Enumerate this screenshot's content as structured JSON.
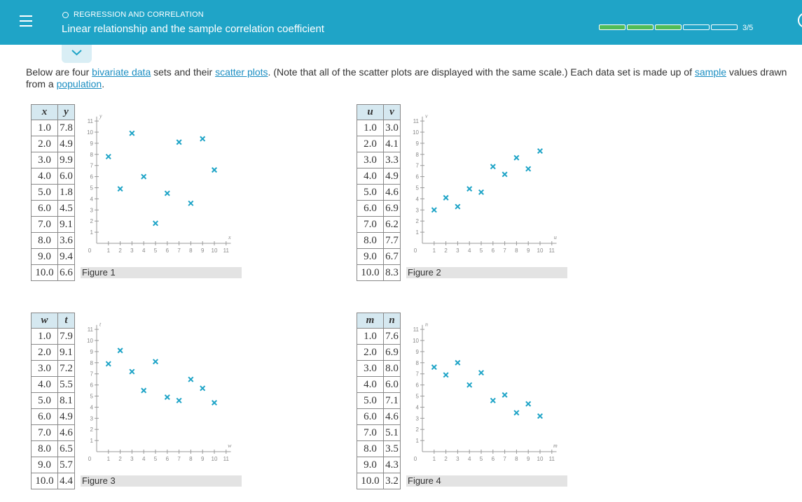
{
  "header": {
    "section": "REGRESSION AND CORRELATION",
    "title": "Linear relationship and the sample correlation coefficient",
    "progress_text": "3/5",
    "progress_completed": 3,
    "progress_total": 5,
    "accent": "#1fa4c7",
    "progress_color": "#4fbc59"
  },
  "intro": {
    "t1": "Below are four ",
    "link1": "bivariate data",
    "t2": " sets and their ",
    "link2": "scatter plots",
    "t3": ". (Note that all of the scatter plots are displayed with the same scale.) Each data set is made up of ",
    "link3": "sample",
    "t4": " values drawn from a ",
    "link4": "population",
    "t5": "."
  },
  "axis": {
    "yticks": [
      "1",
      "2",
      "3",
      "4",
      "5",
      "6",
      "7",
      "8",
      "9",
      "10",
      "11"
    ],
    "xticks": [
      "1",
      "2",
      "3",
      "4",
      "5",
      "6",
      "7",
      "8",
      "9",
      "10",
      "11"
    ],
    "zero": "0"
  },
  "figures": [
    {
      "caption": "Figure 1",
      "xname": "x",
      "yname": "y",
      "rows": [
        [
          "1.0",
          "7.8"
        ],
        [
          "2.0",
          "4.9"
        ],
        [
          "3.0",
          "9.9"
        ],
        [
          "4.0",
          "6.0"
        ],
        [
          "5.0",
          "1.8"
        ],
        [
          "6.0",
          "4.5"
        ],
        [
          "7.0",
          "9.1"
        ],
        [
          "8.0",
          "3.6"
        ],
        [
          "9.0",
          "9.4"
        ],
        [
          "10.0",
          "6.6"
        ]
      ]
    },
    {
      "caption": "Figure 2",
      "xname": "u",
      "yname": "v",
      "rows": [
        [
          "1.0",
          "3.0"
        ],
        [
          "2.0",
          "4.1"
        ],
        [
          "3.0",
          "3.3"
        ],
        [
          "4.0",
          "4.9"
        ],
        [
          "5.0",
          "4.6"
        ],
        [
          "6.0",
          "6.9"
        ],
        [
          "7.0",
          "6.2"
        ],
        [
          "8.0",
          "7.7"
        ],
        [
          "9.0",
          "6.7"
        ],
        [
          "10.0",
          "8.3"
        ]
      ]
    },
    {
      "caption": "Figure 3",
      "xname": "w",
      "yname": "t",
      "rows": [
        [
          "1.0",
          "7.9"
        ],
        [
          "2.0",
          "9.1"
        ],
        [
          "3.0",
          "7.2"
        ],
        [
          "4.0",
          "5.5"
        ],
        [
          "5.0",
          "8.1"
        ],
        [
          "6.0",
          "4.9"
        ],
        [
          "7.0",
          "4.6"
        ],
        [
          "8.0",
          "6.5"
        ],
        [
          "9.0",
          "5.7"
        ],
        [
          "10.0",
          "4.4"
        ]
      ]
    },
    {
      "caption": "Figure 4",
      "xname": "m",
      "yname": "n",
      "rows": [
        [
          "1.0",
          "7.6"
        ],
        [
          "2.0",
          "6.9"
        ],
        [
          "3.0",
          "8.0"
        ],
        [
          "4.0",
          "6.0"
        ],
        [
          "5.0",
          "7.1"
        ],
        [
          "6.0",
          "4.6"
        ],
        [
          "7.0",
          "5.1"
        ],
        [
          "8.0",
          "3.5"
        ],
        [
          "9.0",
          "4.3"
        ],
        [
          "10.0",
          "3.2"
        ]
      ]
    }
  ],
  "chart_data": [
    {
      "type": "scatter",
      "x": [
        1,
        2,
        3,
        4,
        5,
        6,
        7,
        8,
        9,
        10
      ],
      "y": [
        7.8,
        4.9,
        9.9,
        6.0,
        1.8,
        4.5,
        9.1,
        3.6,
        9.4,
        6.6
      ],
      "xlabel": "x",
      "ylabel": "y",
      "xlim": [
        0,
        11
      ],
      "ylim": [
        0,
        11
      ],
      "title": "Figure 1",
      "marker_color": "#1fa4c7"
    },
    {
      "type": "scatter",
      "x": [
        1,
        2,
        3,
        4,
        5,
        6,
        7,
        8,
        9,
        10
      ],
      "y": [
        3.0,
        4.1,
        3.3,
        4.9,
        4.6,
        6.9,
        6.2,
        7.7,
        6.7,
        8.3
      ],
      "xlabel": "u",
      "ylabel": "v",
      "xlim": [
        0,
        11
      ],
      "ylim": [
        0,
        11
      ],
      "title": "Figure 2",
      "marker_color": "#1fa4c7"
    },
    {
      "type": "scatter",
      "x": [
        1,
        2,
        3,
        4,
        5,
        6,
        7,
        8,
        9,
        10
      ],
      "y": [
        7.9,
        9.1,
        7.2,
        5.5,
        8.1,
        4.9,
        4.6,
        6.5,
        5.7,
        4.4
      ],
      "xlabel": "w",
      "ylabel": "t",
      "xlim": [
        0,
        11
      ],
      "ylim": [
        0,
        11
      ],
      "title": "Figure 3",
      "marker_color": "#1fa4c7"
    },
    {
      "type": "scatter",
      "x": [
        1,
        2,
        3,
        4,
        5,
        6,
        7,
        8,
        9,
        10
      ],
      "y": [
        7.6,
        6.9,
        8.0,
        6.0,
        7.1,
        4.6,
        5.1,
        3.5,
        4.3,
        3.2
      ],
      "xlabel": "m",
      "ylabel": "n",
      "xlim": [
        0,
        11
      ],
      "ylim": [
        0,
        11
      ],
      "title": "Figure 4",
      "marker_color": "#1fa4c7"
    }
  ]
}
